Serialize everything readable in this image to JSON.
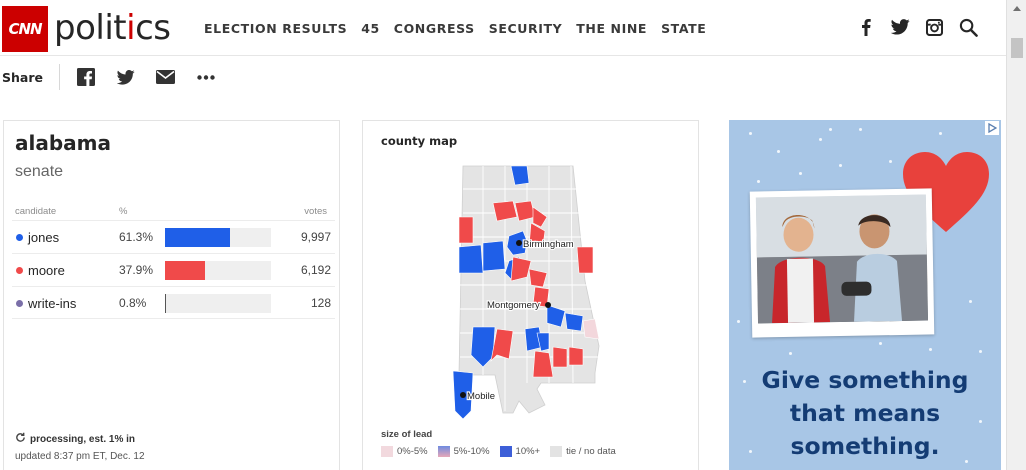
{
  "header": {
    "logo_text": "CNN",
    "brand": "politics",
    "nav": [
      "ELECTION RESULTS",
      "45",
      "CONGRESS",
      "SECURITY",
      "THE NINE",
      "STATE"
    ],
    "icons": [
      "facebook-icon",
      "twitter-icon",
      "instagram-icon",
      "search-icon"
    ]
  },
  "share": {
    "label": "Share",
    "icons": [
      "facebook-icon",
      "twitter-icon",
      "email-icon",
      "more-icon"
    ]
  },
  "results": {
    "state": "alabama",
    "race": "senate",
    "columns": {
      "candidate": "candidate",
      "pct": "%",
      "votes": "votes"
    },
    "candidates": [
      {
        "name": "jones",
        "pct": "61.3%",
        "share": 0.613,
        "votes": "9,997",
        "color": "#1f5fe8"
      },
      {
        "name": "moore",
        "pct": "37.9%",
        "share": 0.379,
        "votes": "6,192",
        "color": "#f04a4a"
      },
      {
        "name": "write-ins",
        "pct": "0.8%",
        "share": 0.008,
        "votes": "128",
        "color": "#7a6fa8"
      }
    ],
    "status": "processing, est. 1% in",
    "updated": "updated 8:37 pm ET, Dec. 12"
  },
  "map": {
    "title": "county map",
    "cities": [
      "Birmingham",
      "Montgomery",
      "Mobile"
    ],
    "legend_title": "size of lead",
    "legend": [
      {
        "label": "0%-5%",
        "color": "#f2d9de"
      },
      {
        "label": "5%-10%",
        "color": "#e8a8b8"
      },
      {
        "label": "10%+",
        "color": "#3d5fd8"
      },
      {
        "label": "tie / no data",
        "color": "#e3e3e3"
      }
    ]
  },
  "ad": {
    "lines": [
      "Give something",
      "that means",
      "something."
    ],
    "badge_icon": "adchoices-icon"
  },
  "colors": {
    "dem": "#1f5fe8",
    "rep": "#f04a4a",
    "none": "#e0e0e0",
    "accent": "#cc0000"
  }
}
